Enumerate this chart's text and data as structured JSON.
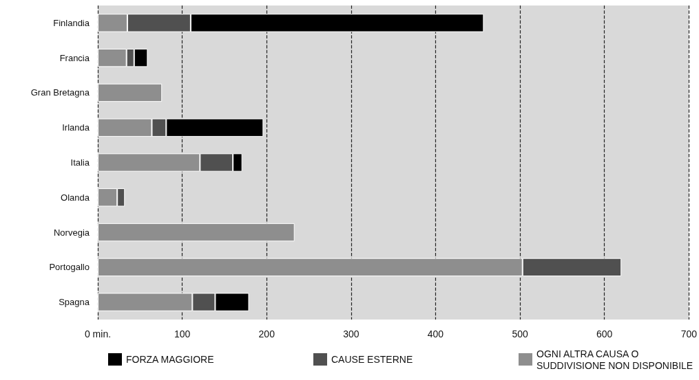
{
  "chart_data": {
    "type": "bar",
    "orientation": "horizontal",
    "stacked": true,
    "categories": [
      "Finlandia",
      "Francia",
      "Gran Bretagna",
      "Irlanda",
      "Italia",
      "Olanda",
      "Norvegia",
      "Portogallo",
      "Spagna"
    ],
    "series": [
      {
        "name": "OGNI ALTRA CAUSA O SUDDIVISIONE NON DISPONIBILE",
        "color": "#8e8e8e",
        "values": [
          35,
          34,
          76,
          64,
          121,
          23,
          233,
          503,
          112
        ]
      },
      {
        "name": "CAUSE ESTERNE",
        "color": "#505050",
        "values": [
          75,
          9,
          null,
          17,
          39,
          9,
          null,
          117,
          27
        ]
      },
      {
        "name": "FORZA MAGGIORE",
        "color": "#000000",
        "values": [
          347,
          16,
          null,
          115,
          11,
          null,
          null,
          null,
          40
        ]
      }
    ],
    "xlim": [
      0,
      700
    ],
    "xticks": [
      {
        "value": 0,
        "label": "0 min."
      },
      100,
      200,
      300,
      400,
      500,
      600,
      700
    ],
    "grid": "x",
    "legend": "bottom"
  }
}
